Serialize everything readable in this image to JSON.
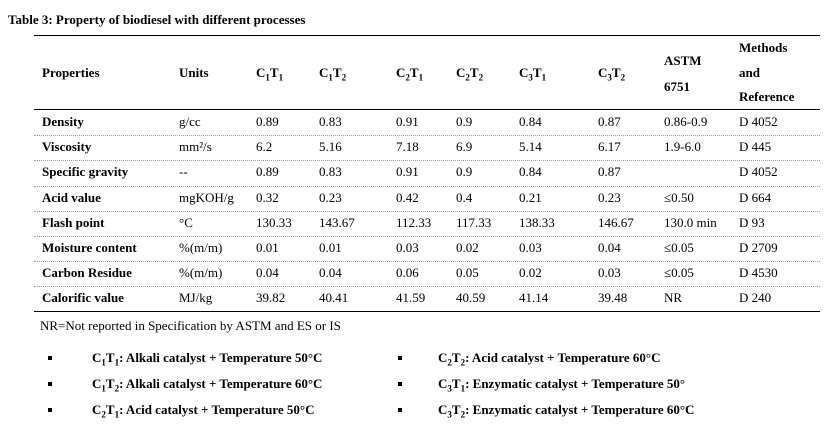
{
  "title": "Table 3: Property of biodiesel with different processes",
  "headers": {
    "properties": "Properties",
    "units": "Units",
    "c1t1": [
      "C",
      "1",
      "T",
      "1"
    ],
    "c1t2": [
      "C",
      "1",
      "T",
      "2"
    ],
    "c2t1": [
      "C",
      "2",
      "T",
      "1"
    ],
    "c2t2": [
      "C",
      "2",
      "T",
      "2"
    ],
    "c3t1": [
      "C",
      "3",
      "T",
      "1"
    ],
    "c3t2": [
      "C",
      "3",
      "T",
      "2"
    ],
    "astm": [
      "ASTM",
      "6751"
    ],
    "methods": [
      "Methods",
      "and",
      "Reference"
    ]
  },
  "rows": [
    {
      "property": "Density",
      "unit": "g/cc",
      "v": [
        "0.89",
        "0.83",
        "0.91",
        "0.9",
        "0.84",
        "0.87"
      ],
      "astm": "0.86-0.9",
      "method": "D  4052"
    },
    {
      "property": "Viscosity",
      "unit": "mm²/s",
      "v": [
        "6.2",
        "5.16",
        "7.18",
        "6.9",
        "5.14",
        "6.17"
      ],
      "astm": "1.9-6.0",
      "method": "D  445"
    },
    {
      "property": "Specific gravity",
      "unit": "--",
      "v": [
        "0.89",
        "0.83",
        "0.91",
        "0.9",
        "0.84",
        "0.87"
      ],
      "astm": "",
      "method": "D  4052"
    },
    {
      "property": "Acid value",
      "unit": "mgKOH/g",
      "v": [
        "0.32",
        "0.23",
        "0.42",
        "0.4",
        "0.21",
        "0.23"
      ],
      "astm": "≤0.50",
      "method": "D  664"
    },
    {
      "property": "Flash point",
      "unit": "°C",
      "v": [
        "130.33",
        "143.67",
        "112.33",
        "117.33",
        "138.33",
        "146.67"
      ],
      "astm": "130.0 min",
      "method": "D  93"
    },
    {
      "property": "Moisture content",
      "unit": "%(m/m)",
      "v": [
        "0.01",
        "0.01",
        "0.03",
        "0.02",
        "0.03",
        "0.04"
      ],
      "astm": "≤0.05",
      "method": "D  2709"
    },
    {
      "property": "Carbon Residue",
      "unit": "%(m/m)",
      "v": [
        "0.04",
        "0.04",
        "0.06",
        "0.05",
        "0.02",
        "0.03"
      ],
      "astm": "≤0.05",
      "method": "D  4530"
    },
    {
      "property": "Calorific value",
      "unit": "MJ/kg",
      "v": [
        "39.82",
        "40.41",
        "41.59",
        "40.59",
        "41.14",
        "39.48"
      ],
      "astm": "NR",
      "method": "D  240"
    }
  ],
  "note": "NR=Not reported in Specification by ASTM and ES or IS",
  "legend": [
    {
      "c": "1",
      "t": "1",
      "text": ":  Alkali catalyst + Temperature  50°C"
    },
    {
      "c": "1",
      "t": "2",
      "text": ":  Alkali catalyst + Temperature  60°C"
    },
    {
      "c": "2",
      "t": "1",
      "text": ":  Acid catalyst + Temperature  50°C"
    },
    {
      "c": "2",
      "t": "2",
      "text": ":  Acid catalyst + Temperature  60°C"
    },
    {
      "c": "3",
      "t": "1",
      "text": ":  Enzymatic catalyst + Temperature  50°"
    },
    {
      "c": "3",
      "t": "2",
      "text": ": Enzymatic catalyst + Temperature  60°C"
    }
  ]
}
